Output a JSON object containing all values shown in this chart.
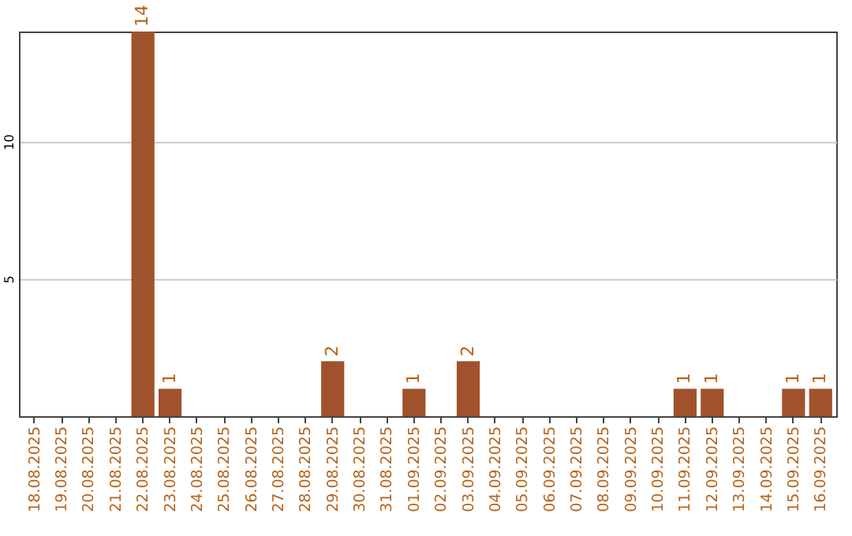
{
  "chart_data": {
    "type": "bar",
    "categories": [
      "18.08.2025",
      "19.08.2025",
      "20.08.2025",
      "21.08.2025",
      "22.08.2025",
      "23.08.2025",
      "24.08.2025",
      "25.08.2025",
      "26.08.2025",
      "27.08.2025",
      "28.08.2025",
      "29.08.2025",
      "30.08.2025",
      "31.08.2025",
      "01.09.2025",
      "02.09.2025",
      "03.09.2025",
      "04.09.2025",
      "05.09.2025",
      "06.09.2025",
      "07.09.2025",
      "08.09.2025",
      "09.09.2025",
      "10.09.2025",
      "11.09.2025",
      "12.09.2025",
      "13.09.2025",
      "14.09.2025",
      "15.09.2025",
      "16.09.2025"
    ],
    "values": [
      0,
      0,
      0,
      0,
      14,
      1,
      0,
      0,
      0,
      0,
      0,
      2,
      0,
      0,
      1,
      0,
      2,
      0,
      0,
      0,
      0,
      0,
      0,
      0,
      1,
      1,
      0,
      0,
      1,
      1
    ],
    "value_labels": [
      null,
      null,
      null,
      null,
      "14",
      "1",
      null,
      null,
      null,
      null,
      null,
      "2",
      null,
      null,
      "1",
      null,
      "2",
      null,
      null,
      null,
      null,
      null,
      null,
      null,
      "1",
      "1",
      null,
      null,
      "1",
      "1"
    ],
    "color": "#a0522d",
    "ylim": [
      0,
      14
    ],
    "yticks": [
      5,
      10
    ],
    "grid": "y"
  }
}
